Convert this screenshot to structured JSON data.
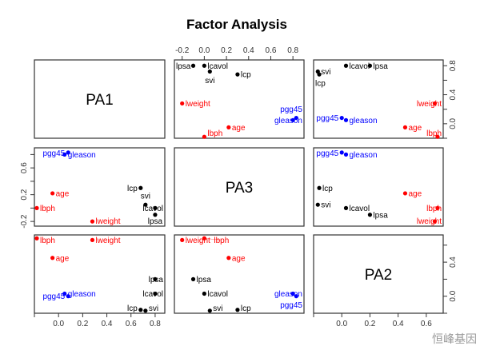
{
  "chart_data": {
    "type": "scatter",
    "subtype": "pairs-matrix",
    "title": "Factor Analysis",
    "factors": [
      "PA1",
      "PA3",
      "PA2"
    ],
    "ranges": {
      "PA1": [
        -0.2,
        0.88
      ],
      "PA3": [
        -0.27,
        0.9
      ],
      "PA2": [
        -0.2,
        0.72
      ]
    },
    "ticks": {
      "PA1_bottom": [
        0.0,
        0.2,
        0.4,
        0.6,
        0.8
      ],
      "PA1_right": [
        0.0,
        0.4,
        0.8
      ],
      "PA3_top": [
        -0.2,
        0.0,
        0.2,
        0.4,
        0.6,
        0.8
      ],
      "PA3_left": [
        -0.2,
        0.2,
        0.6
      ],
      "PA2_right": [
        0.0,
        0.4
      ],
      "PA2_bottom": [
        0.0,
        0.2,
        0.4,
        0.6
      ]
    },
    "colors": {
      "PA1": "#000000",
      "PA3": "#0000ff",
      "PA2": "#ff0000"
    },
    "grid": false,
    "variables": [
      {
        "name": "lcavol",
        "PA1": 0.8,
        "PA3": 0.0,
        "PA2": 0.03,
        "group": "PA1"
      },
      {
        "name": "lweight",
        "PA1": 0.28,
        "PA3": -0.2,
        "PA2": 0.66,
        "group": "PA2"
      },
      {
        "name": "age",
        "PA1": -0.05,
        "PA3": 0.22,
        "PA2": 0.45,
        "group": "PA2"
      },
      {
        "name": "lbph",
        "PA1": -0.18,
        "PA3": 0.0,
        "PA2": 0.68,
        "group": "PA2"
      },
      {
        "name": "svi",
        "PA1": 0.72,
        "PA3": 0.05,
        "PA2": -0.17,
        "group": "PA1"
      },
      {
        "name": "lcp",
        "PA1": 0.68,
        "PA3": 0.3,
        "PA2": -0.16,
        "group": "PA1"
      },
      {
        "name": "gleason",
        "PA1": 0.05,
        "PA3": 0.8,
        "PA2": 0.03,
        "group": "PA3"
      },
      {
        "name": "pgg45",
        "PA1": 0.08,
        "PA3": 0.83,
        "PA2": 0.0,
        "group": "PA3"
      },
      {
        "name": "lpsa",
        "PA1": 0.8,
        "PA3": -0.1,
        "PA2": 0.2,
        "group": "PA1"
      }
    ]
  },
  "watermark": "恒峰基因"
}
